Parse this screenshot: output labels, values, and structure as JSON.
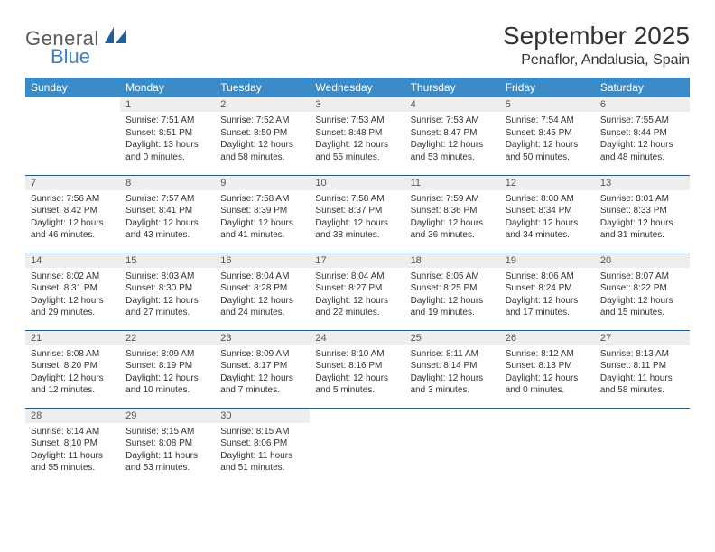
{
  "brand": {
    "general": "General",
    "blue": "Blue"
  },
  "title": "September 2025",
  "location": "Penaflor, Andalusia, Spain",
  "colors": {
    "header_bg": "#3b8bc9",
    "header_text": "#ffffff",
    "daynum_bg": "#eeeeee",
    "cell_border": "#2a5a8a",
    "logo_gray": "#5a5a5a",
    "logo_blue": "#3b7fc4",
    "text": "#333333"
  },
  "daynames": [
    "Sunday",
    "Monday",
    "Tuesday",
    "Wednesday",
    "Thursday",
    "Friday",
    "Saturday"
  ],
  "weeks": [
    [
      {
        "empty": true
      },
      {
        "n": "1",
        "sunrise": "7:51 AM",
        "sunset": "8:51 PM",
        "daylight": "13 hours and 0 minutes."
      },
      {
        "n": "2",
        "sunrise": "7:52 AM",
        "sunset": "8:50 PM",
        "daylight": "12 hours and 58 minutes."
      },
      {
        "n": "3",
        "sunrise": "7:53 AM",
        "sunset": "8:48 PM",
        "daylight": "12 hours and 55 minutes."
      },
      {
        "n": "4",
        "sunrise": "7:53 AM",
        "sunset": "8:47 PM",
        "daylight": "12 hours and 53 minutes."
      },
      {
        "n": "5",
        "sunrise": "7:54 AM",
        "sunset": "8:45 PM",
        "daylight": "12 hours and 50 minutes."
      },
      {
        "n": "6",
        "sunrise": "7:55 AM",
        "sunset": "8:44 PM",
        "daylight": "12 hours and 48 minutes."
      }
    ],
    [
      {
        "n": "7",
        "sunrise": "7:56 AM",
        "sunset": "8:42 PM",
        "daylight": "12 hours and 46 minutes."
      },
      {
        "n": "8",
        "sunrise": "7:57 AM",
        "sunset": "8:41 PM",
        "daylight": "12 hours and 43 minutes."
      },
      {
        "n": "9",
        "sunrise": "7:58 AM",
        "sunset": "8:39 PM",
        "daylight": "12 hours and 41 minutes."
      },
      {
        "n": "10",
        "sunrise": "7:58 AM",
        "sunset": "8:37 PM",
        "daylight": "12 hours and 38 minutes."
      },
      {
        "n": "11",
        "sunrise": "7:59 AM",
        "sunset": "8:36 PM",
        "daylight": "12 hours and 36 minutes."
      },
      {
        "n": "12",
        "sunrise": "8:00 AM",
        "sunset": "8:34 PM",
        "daylight": "12 hours and 34 minutes."
      },
      {
        "n": "13",
        "sunrise": "8:01 AM",
        "sunset": "8:33 PM",
        "daylight": "12 hours and 31 minutes."
      }
    ],
    [
      {
        "n": "14",
        "sunrise": "8:02 AM",
        "sunset": "8:31 PM",
        "daylight": "12 hours and 29 minutes."
      },
      {
        "n": "15",
        "sunrise": "8:03 AM",
        "sunset": "8:30 PM",
        "daylight": "12 hours and 27 minutes."
      },
      {
        "n": "16",
        "sunrise": "8:04 AM",
        "sunset": "8:28 PM",
        "daylight": "12 hours and 24 minutes."
      },
      {
        "n": "17",
        "sunrise": "8:04 AM",
        "sunset": "8:27 PM",
        "daylight": "12 hours and 22 minutes."
      },
      {
        "n": "18",
        "sunrise": "8:05 AM",
        "sunset": "8:25 PM",
        "daylight": "12 hours and 19 minutes."
      },
      {
        "n": "19",
        "sunrise": "8:06 AM",
        "sunset": "8:24 PM",
        "daylight": "12 hours and 17 minutes."
      },
      {
        "n": "20",
        "sunrise": "8:07 AM",
        "sunset": "8:22 PM",
        "daylight": "12 hours and 15 minutes."
      }
    ],
    [
      {
        "n": "21",
        "sunrise": "8:08 AM",
        "sunset": "8:20 PM",
        "daylight": "12 hours and 12 minutes."
      },
      {
        "n": "22",
        "sunrise": "8:09 AM",
        "sunset": "8:19 PM",
        "daylight": "12 hours and 10 minutes."
      },
      {
        "n": "23",
        "sunrise": "8:09 AM",
        "sunset": "8:17 PM",
        "daylight": "12 hours and 7 minutes."
      },
      {
        "n": "24",
        "sunrise": "8:10 AM",
        "sunset": "8:16 PM",
        "daylight": "12 hours and 5 minutes."
      },
      {
        "n": "25",
        "sunrise": "8:11 AM",
        "sunset": "8:14 PM",
        "daylight": "12 hours and 3 minutes."
      },
      {
        "n": "26",
        "sunrise": "8:12 AM",
        "sunset": "8:13 PM",
        "daylight": "12 hours and 0 minutes."
      },
      {
        "n": "27",
        "sunrise": "8:13 AM",
        "sunset": "8:11 PM",
        "daylight": "11 hours and 58 minutes."
      }
    ],
    [
      {
        "n": "28",
        "sunrise": "8:14 AM",
        "sunset": "8:10 PM",
        "daylight": "11 hours and 55 minutes."
      },
      {
        "n": "29",
        "sunrise": "8:15 AM",
        "sunset": "8:08 PM",
        "daylight": "11 hours and 53 minutes."
      },
      {
        "n": "30",
        "sunrise": "8:15 AM",
        "sunset": "8:06 PM",
        "daylight": "11 hours and 51 minutes."
      },
      {
        "empty": true
      },
      {
        "empty": true
      },
      {
        "empty": true
      },
      {
        "empty": true
      }
    ]
  ],
  "labels": {
    "sunrise_prefix": "Sunrise: ",
    "sunset_prefix": "Sunset: ",
    "daylight_prefix": "Daylight: "
  }
}
